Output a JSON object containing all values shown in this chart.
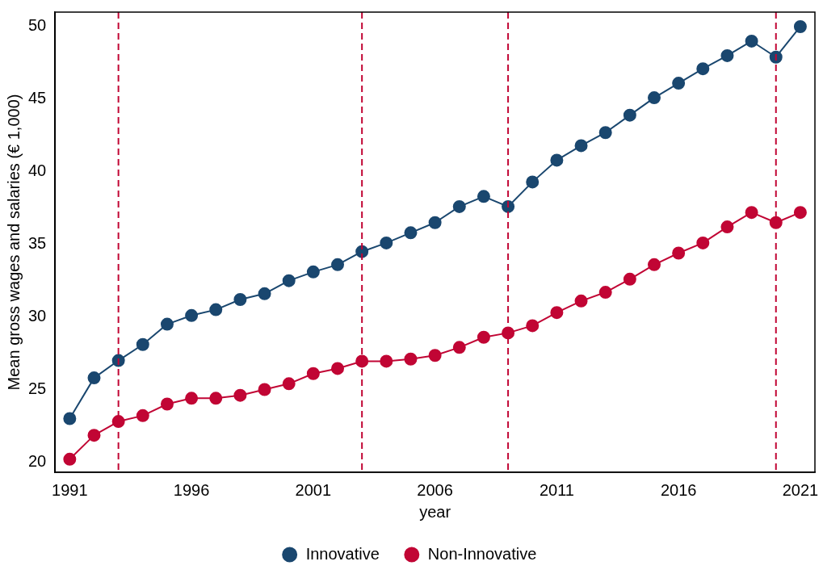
{
  "chart_data": {
    "type": "line",
    "xlabel": "year",
    "ylabel": "Mean gross wages and salaries (€ 1,000)",
    "x": [
      1991,
      1992,
      1993,
      1994,
      1995,
      1996,
      1997,
      1998,
      1999,
      2000,
      2001,
      2002,
      2003,
      2004,
      2005,
      2006,
      2007,
      2008,
      2009,
      2010,
      2011,
      2012,
      2013,
      2014,
      2015,
      2016,
      2017,
      2018,
      2019,
      2020,
      2021
    ],
    "series": [
      {
        "name": "Innovative",
        "color": "#1a476f",
        "values": [
          23.0,
          25.8,
          27.0,
          28.1,
          29.5,
          30.1,
          30.5,
          31.2,
          31.6,
          32.5,
          33.1,
          33.6,
          34.5,
          35.1,
          35.8,
          36.5,
          37.6,
          38.3,
          37.6,
          39.3,
          40.8,
          41.8,
          42.7,
          43.9,
          45.1,
          46.1,
          47.1,
          48.0,
          49.0,
          47.9,
          50.0
        ]
      },
      {
        "name": "Non-Innovative",
        "color": "#c10534",
        "values": [
          20.2,
          21.85,
          22.8,
          23.2,
          24.0,
          24.4,
          24.4,
          24.6,
          25.0,
          25.4,
          26.1,
          26.45,
          26.95,
          26.95,
          27.1,
          27.35,
          27.9,
          28.6,
          28.9,
          29.4,
          30.3,
          31.1,
          31.7,
          32.6,
          33.6,
          34.4,
          35.1,
          36.2,
          37.2,
          36.5,
          37.2
        ]
      }
    ],
    "xlim": [
      1990.4,
      2021.6
    ],
    "xticks": [
      1991,
      1996,
      2001,
      2006,
      2011,
      2016,
      2021
    ],
    "ylim": [
      19.3,
      51
    ],
    "yticks": [
      20,
      25,
      30,
      35,
      40,
      45,
      50
    ],
    "ref_lines": [
      {
        "axis": "x",
        "value": 1993,
        "color": "#c10534",
        "line_style": "dashed"
      },
      {
        "axis": "x",
        "value": 2003,
        "color": "#c10534",
        "line_style": "dashed"
      },
      {
        "axis": "x",
        "value": 2009,
        "color": "#c10534",
        "line_style": "dashed"
      },
      {
        "axis": "x",
        "value": 2020,
        "color": "#c10534",
        "line_style": "dashed"
      }
    ],
    "grid": false,
    "legend": "bottom",
    "marker": "circle",
    "line_style": "solid"
  }
}
